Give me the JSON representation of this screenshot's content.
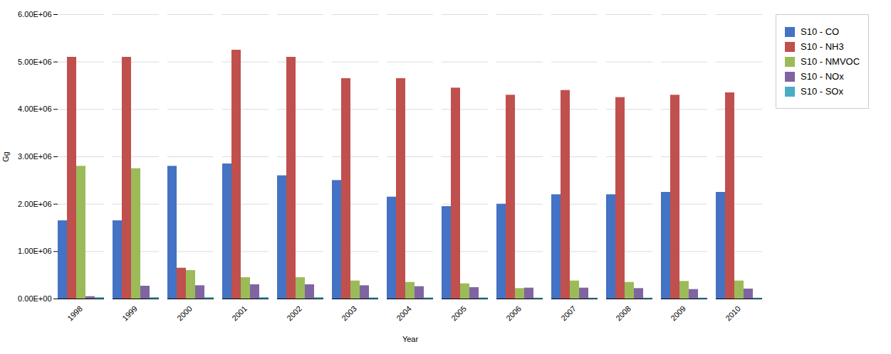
{
  "chart_data": {
    "type": "bar",
    "categories": [
      "1998",
      "1999",
      "2000",
      "2001",
      "2002",
      "2003",
      "2004",
      "2005",
      "2006",
      "2007",
      "2008",
      "2009",
      "2010"
    ],
    "series": [
      {
        "name": "S10 - CO",
        "color": "#4472C4",
        "values": [
          1650000,
          1650000,
          2800000,
          2850000,
          2600000,
          2500000,
          2150000,
          1950000,
          2000000,
          2200000,
          2200000,
          2250000,
          2250000
        ]
      },
      {
        "name": "S10 - NH3",
        "color": "#C0504D",
        "values": [
          5100000,
          5100000,
          650000,
          5250000,
          5100000,
          4650000,
          4650000,
          4450000,
          4300000,
          4400000,
          4250000,
          4300000,
          4350000
        ]
      },
      {
        "name": "S10 - NMVOC",
        "color": "#9BBB59",
        "values": [
          2800000,
          2750000,
          600000,
          450000,
          450000,
          380000,
          350000,
          320000,
          220000,
          380000,
          350000,
          370000,
          380000
        ]
      },
      {
        "name": "S10 - NOx",
        "color": "#8064A2",
        "values": [
          50000,
          270000,
          280000,
          300000,
          300000,
          280000,
          260000,
          240000,
          230000,
          230000,
          220000,
          200000,
          210000
        ]
      },
      {
        "name": "S10 - SOx",
        "color": "#4BACC6",
        "values": [
          30000,
          30000,
          30000,
          30000,
          30000,
          25000,
          25000,
          25000,
          20000,
          20000,
          20000,
          20000,
          20000
        ]
      }
    ],
    "xlabel": "Year",
    "ylabel": "Gg",
    "ylim": [
      0,
      6000000
    ],
    "yticks": [
      {
        "value": 0,
        "label": "0.00E+00"
      },
      {
        "value": 1000000,
        "label": "1.00E+06"
      },
      {
        "value": 2000000,
        "label": "2.00E+06"
      },
      {
        "value": 3000000,
        "label": "3.00E+06"
      },
      {
        "value": 4000000,
        "label": "4.00E+06"
      },
      {
        "value": 5000000,
        "label": "5.00E+06"
      },
      {
        "value": 6000000,
        "label": "6.00E+06"
      }
    ],
    "grid": true,
    "legend": "right"
  }
}
